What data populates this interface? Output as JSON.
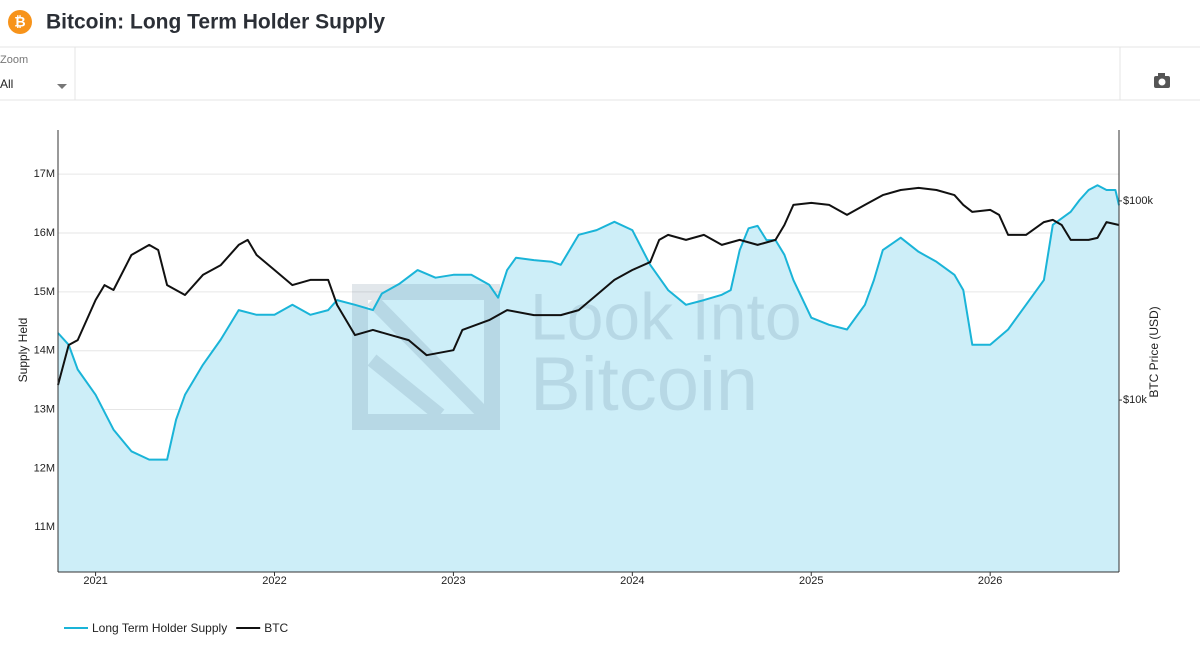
{
  "controls": {
    "zoom_label": "Zoom",
    "zoom_value": "All"
  },
  "chart_data": {
    "type": "line",
    "title": "Bitcoin: Long Term Holder Supply",
    "watermark": [
      "Look Into",
      "Bitcoin"
    ],
    "ylabel": "Supply Held",
    "y2label": "BTC Price (USD)",
    "xlim": [
      2020.79,
      2026.72
    ],
    "xticks": [
      2021,
      2022,
      2023,
      2024,
      2025,
      2026
    ],
    "ylim": [
      10.24,
      17.75
    ],
    "yticks": [
      {
        "value": 11,
        "label": "11M"
      },
      {
        "value": 12,
        "label": "12M"
      },
      {
        "value": 13,
        "label": "13M"
      },
      {
        "value": 14,
        "label": "14M"
      },
      {
        "value": 15,
        "label": "15M"
      },
      {
        "value": 16,
        "label": "16M"
      },
      {
        "value": 17,
        "label": "17M"
      }
    ],
    "y2lim": [
      1370,
      227000
    ],
    "y2log": true,
    "y2ticks": [
      {
        "value": 10000,
        "label": "$10k"
      },
      {
        "value": 100000,
        "label": "$100k"
      }
    ],
    "grid": true,
    "legend": "bottom-left",
    "series": [
      {
        "name": "Long Term Holder Supply",
        "color": "#1ab4d8",
        "fill": "#cdeef8",
        "x": [
          2020.79,
          2020.85,
          2020.9,
          2021.0,
          2021.1,
          2021.2,
          2021.3,
          2021.4,
          2021.45,
          2021.5,
          2021.6,
          2021.7,
          2021.8,
          2021.9,
          2022.0,
          2022.1,
          2022.2,
          2022.3,
          2022.35,
          2022.45,
          2022.55,
          2022.6,
          2022.7,
          2022.8,
          2022.9,
          2023.0,
          2023.1,
          2023.2,
          2023.25,
          2023.3,
          2023.35,
          2023.45,
          2023.55,
          2023.6,
          2023.7,
          2023.8,
          2023.9,
          2024.0,
          2024.1,
          2024.2,
          2024.3,
          2024.4,
          2024.5,
          2024.55,
          2024.6,
          2024.65,
          2024.7,
          2024.75,
          2024.8,
          2024.85,
          2024.9,
          2025.0,
          2025.1,
          2025.2,
          2025.3,
          2025.35,
          2025.4,
          2025.5,
          2025.6,
          2025.7,
          2025.8,
          2025.85,
          2025.9,
          2026.0,
          2026.1,
          2026.2,
          2026.3,
          2026.35,
          2026.45,
          2026.5,
          2026.55,
          2026.6,
          2026.65,
          2026.7,
          2026.72
        ],
        "values": [
          14.3,
          14.1,
          13.68,
          13.25,
          12.66,
          12.29,
          12.15,
          12.15,
          12.83,
          13.25,
          13.76,
          14.19,
          14.69,
          14.61,
          14.61,
          14.78,
          14.61,
          14.69,
          14.86,
          14.78,
          14.69,
          14.97,
          15.14,
          15.37,
          15.24,
          15.29,
          15.29,
          15.12,
          14.9,
          15.37,
          15.58,
          15.54,
          15.51,
          15.46,
          15.97,
          16.05,
          16.19,
          16.05,
          15.46,
          15.03,
          14.78,
          14.86,
          14.95,
          15.03,
          15.71,
          16.08,
          16.12,
          15.88,
          15.88,
          15.63,
          15.2,
          14.56,
          14.44,
          14.36,
          14.78,
          15.2,
          15.71,
          15.92,
          15.68,
          15.51,
          15.29,
          15.03,
          14.1,
          14.1,
          14.36,
          14.78,
          15.2,
          16.14,
          16.36,
          16.56,
          16.73,
          16.81,
          16.73,
          16.73,
          16.47
        ]
      },
      {
        "name": "BTC",
        "color": "#111111",
        "axis": "y2",
        "x": [
          2020.79,
          2020.85,
          2020.9,
          2021.0,
          2021.05,
          2021.1,
          2021.2,
          2021.3,
          2021.35,
          2021.4,
          2021.5,
          2021.6,
          2021.7,
          2021.8,
          2021.85,
          2021.9,
          2022.0,
          2022.1,
          2022.2,
          2022.3,
          2022.35,
          2022.45,
          2022.55,
          2022.65,
          2022.75,
          2022.85,
          2023.0,
          2023.05,
          2023.2,
          2023.3,
          2023.45,
          2023.6,
          2023.7,
          2023.8,
          2023.9,
          2024.0,
          2024.1,
          2024.15,
          2024.2,
          2024.3,
          2024.4,
          2024.5,
          2024.6,
          2024.7,
          2024.8,
          2024.85,
          2024.9,
          2025.0,
          2025.1,
          2025.2,
          2025.3,
          2025.4,
          2025.5,
          2025.6,
          2025.7,
          2025.8,
          2025.85,
          2025.9,
          2026.0,
          2026.05,
          2026.1,
          2026.2,
          2026.3,
          2026.35,
          2026.4,
          2026.45,
          2026.55,
          2026.6,
          2026.65,
          2026.72
        ],
        "values": [
          11900,
          18900,
          20000,
          31800,
          37800,
          35700,
          53500,
          60100,
          56700,
          37800,
          33700,
          42500,
          47600,
          60100,
          63700,
          53500,
          45000,
          37800,
          40100,
          40100,
          30000,
          21200,
          22500,
          21200,
          20000,
          16800,
          17800,
          22500,
          25200,
          28300,
          26700,
          26700,
          28300,
          33700,
          40100,
          45000,
          49300,
          63700,
          67500,
          63700,
          67500,
          60100,
          63700,
          60100,
          63700,
          75700,
          95500,
          97700,
          95500,
          85100,
          95500,
          107000,
          113500,
          116200,
          113500,
          107000,
          95500,
          88100,
          90100,
          85100,
          67500,
          67500,
          78300,
          80300,
          75700,
          63700,
          63700,
          65200,
          78300,
          75700
        ]
      }
    ]
  }
}
